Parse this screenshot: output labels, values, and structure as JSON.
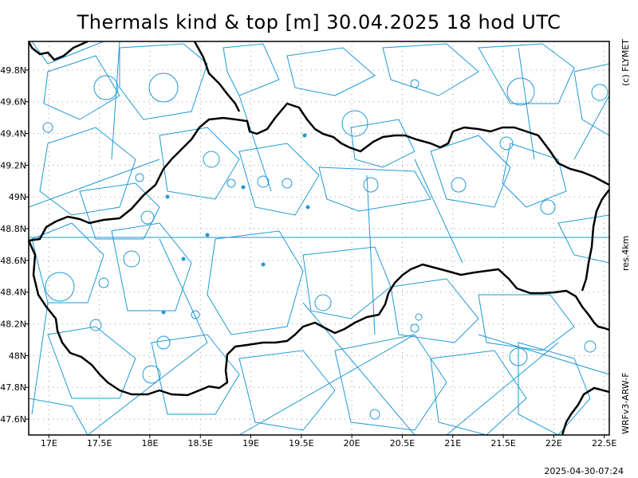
{
  "title": "Thermals kind & top [m]  30.04.2025 18 hod UTC",
  "copyright": "(c) FLYMET",
  "resolution": "res.4km",
  "model": "WRFv3-ARW-F",
  "timestamp": "2025-04-30-07:24",
  "colors": {
    "contour": "#1e9ad6",
    "border": "#000000",
    "frame": "#000000",
    "grid": "#9a9a9a"
  },
  "map": {
    "lon_range": [
      16.8,
      22.55
    ],
    "lat_range": [
      47.5,
      49.98
    ],
    "lon_ticks": [
      {
        "value": 17.0,
        "label": "17E"
      },
      {
        "value": 17.5,
        "label": "17.5E"
      },
      {
        "value": 18.0,
        "label": "18E"
      },
      {
        "value": 18.5,
        "label": "18.5E"
      },
      {
        "value": 19.0,
        "label": "19E"
      },
      {
        "value": 19.5,
        "label": "19.5E"
      },
      {
        "value": 20.0,
        "label": "20E"
      },
      {
        "value": 20.5,
        "label": "20.5E"
      },
      {
        "value": 21.0,
        "label": "21E"
      },
      {
        "value": 21.5,
        "label": "21.5E"
      },
      {
        "value": 22.0,
        "label": "22E"
      },
      {
        "value": 22.5,
        "label": "22.5E"
      }
    ],
    "lat_ticks": [
      {
        "value": 47.6,
        "label": "47.6N"
      },
      {
        "value": 47.8,
        "label": "47.8N"
      },
      {
        "value": 48.0,
        "label": "48N"
      },
      {
        "value": 48.2,
        "label": "48.2N"
      },
      {
        "value": 48.4,
        "label": "48.4N"
      },
      {
        "value": 48.6,
        "label": "48.6N"
      },
      {
        "value": 48.8,
        "label": "48.8N"
      },
      {
        "value": 49.0,
        "label": "49N"
      },
      {
        "value": 49.2,
        "label": "49.2N"
      },
      {
        "value": 49.4,
        "label": "49.4N"
      },
      {
        "value": 49.6,
        "label": "49.6N"
      },
      {
        "value": 49.8,
        "label": "49.8N"
      }
    ],
    "grid": "dotted"
  }
}
